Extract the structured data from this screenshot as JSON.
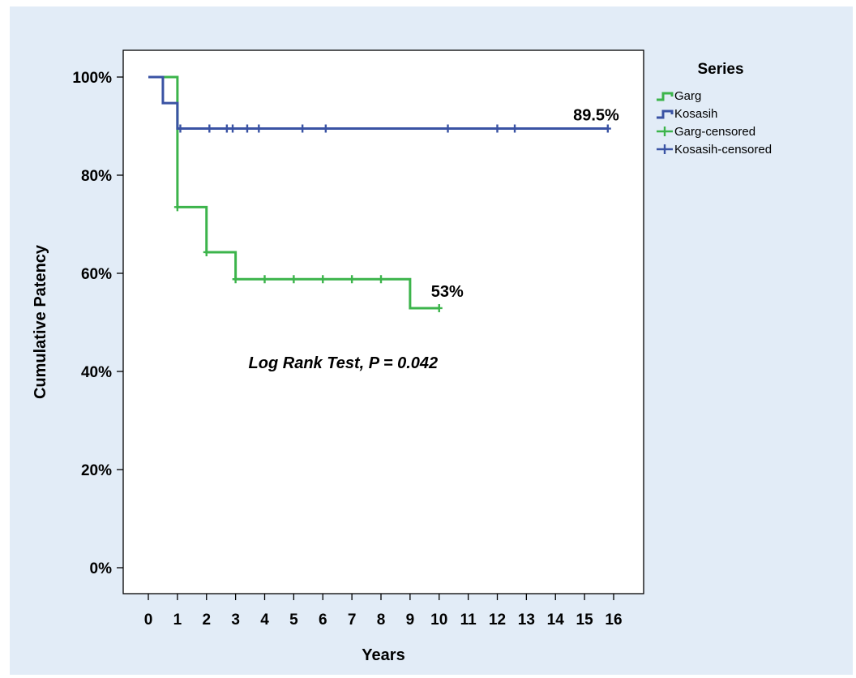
{
  "chart_data": {
    "type": "line",
    "subtype": "kaplan-meier",
    "xlabel": "Years",
    "ylabel": "Cumulative Patency",
    "xlim": [
      0,
      16
    ],
    "ylim": [
      0,
      100
    ],
    "x_ticks": [
      "0",
      "1",
      "2",
      "3",
      "4",
      "5",
      "6",
      "7",
      "8",
      "9",
      "10",
      "11",
      "12",
      "13",
      "14",
      "15",
      "16"
    ],
    "y_ticks": [
      "0%",
      "20%",
      "40%",
      "60%",
      "80%",
      "100%"
    ],
    "y_tick_values": [
      0,
      20,
      40,
      60,
      80,
      100
    ],
    "grid": false,
    "legend": {
      "title": "Series",
      "position": "top-right",
      "entries": [
        "Garg",
        "Kosasih",
        "Garg-censored",
        "Kosasih-censored"
      ]
    },
    "series": [
      {
        "name": "Garg",
        "color": "#3cb44b",
        "step_x": [
          0,
          1,
          2,
          3,
          9,
          10
        ],
        "step_y": [
          100,
          73.5,
          64.3,
          58.8,
          52.9,
          52.9
        ],
        "censored_x": [
          1.0,
          2.0,
          3.0,
          4.0,
          5.0,
          6.0,
          7.0,
          8.0,
          10.0
        ],
        "censored_y": [
          73.5,
          64.3,
          58.8,
          58.8,
          58.8,
          58.8,
          58.8,
          58.8,
          52.9
        ]
      },
      {
        "name": "Kosasih",
        "color": "#3a53a4",
        "step_x": [
          0,
          0.5,
          1,
          15.8
        ],
        "step_y": [
          100,
          94.7,
          89.5,
          89.5
        ],
        "censored_x": [
          1.1,
          2.1,
          2.7,
          2.9,
          3.4,
          3.8,
          5.3,
          6.1,
          10.3,
          12.0,
          12.6,
          15.8
        ],
        "censored_y": [
          89.5,
          89.5,
          89.5,
          89.5,
          89.5,
          89.5,
          89.5,
          89.5,
          89.5,
          89.5,
          89.5,
          89.5
        ]
      }
    ],
    "annotations": {
      "kosasih_end": {
        "text": "89.5%",
        "x": 15.8,
        "y": 89.5
      },
      "garg_end": {
        "text": "53%",
        "x": 10,
        "y": 52.9
      },
      "test": {
        "text": "Log Rank Test, P = 0.042",
        "x": 6.7,
        "y": 42
      }
    }
  }
}
